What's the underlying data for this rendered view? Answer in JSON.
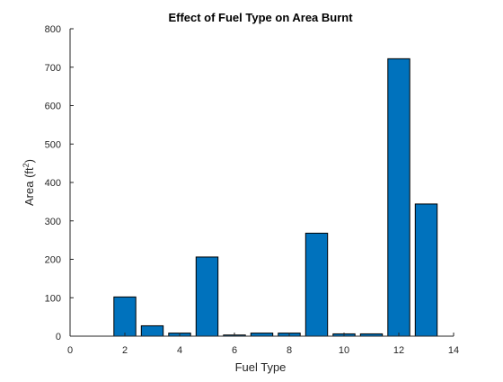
{
  "chart_data": {
    "type": "bar",
    "title": "Effect of Fuel Type on Area Burnt",
    "xlabel": "Fuel Type",
    "ylabel_base": "Area (ft",
    "ylabel_sup": "2",
    "ylabel_end": ")",
    "x": [
      1,
      2,
      3,
      4,
      5,
      6,
      7,
      8,
      9,
      10,
      11,
      12,
      13
    ],
    "values": [
      0,
      102,
      27,
      8,
      206,
      3,
      8,
      8,
      268,
      6,
      6,
      722,
      344
    ],
    "xlim": [
      0,
      14
    ],
    "ylim": [
      0,
      800
    ],
    "xticks": [
      0,
      2,
      4,
      6,
      8,
      10,
      12,
      14
    ],
    "yticks": [
      0,
      100,
      200,
      300,
      400,
      500,
      600,
      700,
      800
    ],
    "bar_color": "#0072BD",
    "grid": false,
    "legend": "none"
  }
}
